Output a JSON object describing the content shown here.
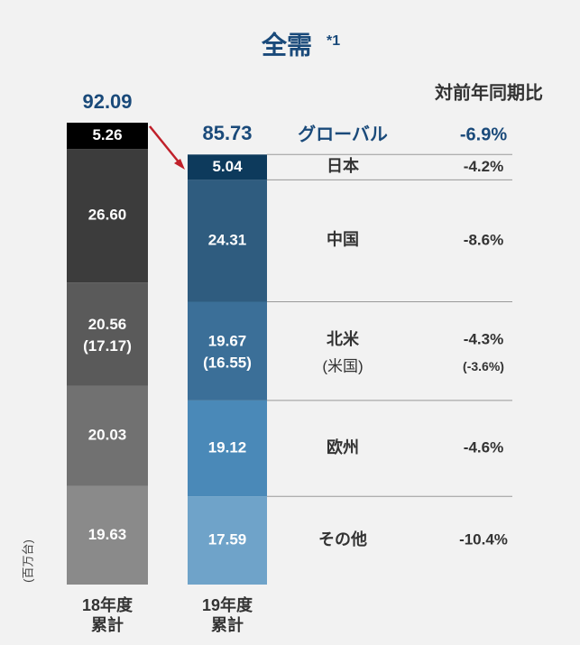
{
  "chart_data": {
    "type": "bar",
    "stacked": true,
    "title": "全需",
    "title_note": "*1",
    "unit_label": "(百万台)",
    "yoy_header": "対前年同期比",
    "categories": [
      "18年度\n累計",
      "19年度\n累計"
    ],
    "totals": [
      92.09,
      85.73
    ],
    "global": {
      "name": "グローバル",
      "yoy": -6.9,
      "yoy_label": "-6.9%"
    },
    "series": [
      {
        "name": "その他",
        "colors": [
          "#8a8a8a",
          "#6fa3c9"
        ],
        "values": [
          19.63,
          17.59
        ],
        "yoy": -10.4,
        "yoy_label": "-10.4%"
      },
      {
        "name": "欧州",
        "colors": [
          "#717171",
          "#4a89b8"
        ],
        "values": [
          20.03,
          19.12
        ],
        "yoy": -4.6,
        "yoy_label": "-4.6%"
      },
      {
        "name": "北米",
        "colors": [
          "#5a5a5a",
          "#3b6f98"
        ],
        "values": [
          20.56,
          19.67
        ],
        "yoy": -4.3,
        "yoy_label": "-4.3%",
        "sub_name": "(米国)",
        "sub_values": [
          17.17,
          16.55
        ],
        "sub_value_labels": [
          "(17.17)",
          "(16.55)"
        ],
        "sub_yoy": -3.6,
        "sub_yoy_label": "(-3.6%)"
      },
      {
        "name": "中国",
        "colors": [
          "#3c3c3c",
          "#2f5c7f"
        ],
        "values": [
          26.6,
          24.31
        ],
        "value_labels": [
          "26.60",
          "24.31"
        ],
        "yoy": -8.6,
        "yoy_label": "-8.6%"
      },
      {
        "name": "日本",
        "colors": [
          "#000000",
          "#0d3a5c"
        ],
        "values": [
          5.26,
          5.04
        ],
        "yoy": -4.2,
        "yoy_label": "-4.2%"
      }
    ]
  }
}
